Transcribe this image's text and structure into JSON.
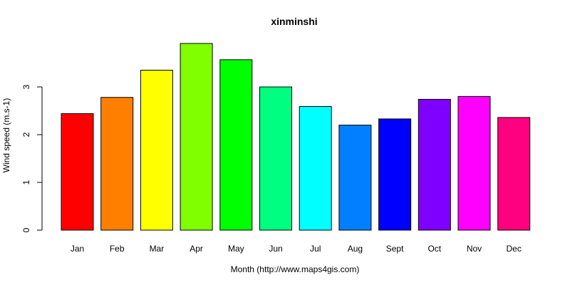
{
  "chart_data": {
    "type": "bar",
    "title": "xinminshi",
    "xlabel": "Month (http://www.maps4gis.com)",
    "ylabel": "Wind speed (m.s-1)",
    "categories": [
      "Jan",
      "Feb",
      "Mar",
      "Apr",
      "May",
      "Jun",
      "Jul",
      "Aug",
      "Sept",
      "Oct",
      "Nov",
      "Dec"
    ],
    "values": [
      2.44,
      2.78,
      3.35,
      3.91,
      3.57,
      3.0,
      2.59,
      2.2,
      2.33,
      2.74,
      2.8,
      2.36
    ],
    "colors": [
      "#FF0000",
      "#FF8000",
      "#FFFF00",
      "#80FF00",
      "#00FF00",
      "#00FF80",
      "#00FFFF",
      "#0080FF",
      "#0000FF",
      "#8000FF",
      "#FF00FF",
      "#FF0080"
    ],
    "yticks": [
      0,
      1,
      2,
      3
    ],
    "ylim": [
      0,
      3.91
    ],
    "grid": false,
    "legend": "none"
  }
}
